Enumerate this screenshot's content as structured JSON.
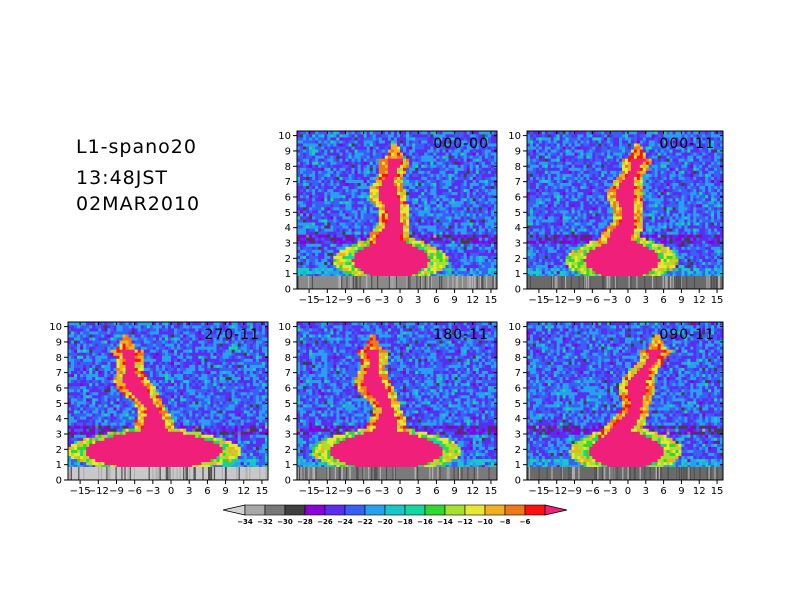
{
  "header": {
    "line1": "L1-spano20",
    "line2": "13:48JST",
    "line3": "02MAR2010"
  },
  "chart_data": {
    "type": "heatmap",
    "x_ticks": [
      -15,
      -12,
      -9,
      -6,
      -3,
      0,
      3,
      6,
      9,
      12,
      15
    ],
    "y_ticks": [
      0,
      1,
      2,
      3,
      4,
      5,
      6,
      7,
      8,
      9,
      10
    ],
    "xlim": [
      -17,
      16
    ],
    "ylim": [
      0,
      10.3
    ],
    "colorbar": {
      "levels": [
        -34,
        -32,
        -30,
        -28,
        -26,
        -24,
        -22,
        -20,
        -18,
        -16,
        -14,
        -12,
        -10,
        -8,
        -6
      ],
      "colors": [
        "#d2d2d2",
        "#a8a8a8",
        "#787878",
        "#404040",
        "#8a00d8",
        "#5a2ef0",
        "#3a5ff5",
        "#28a0f0",
        "#18c8c8",
        "#10d8a0",
        "#30d830",
        "#a8e030",
        "#e8e830",
        "#f0b020",
        "#f07818",
        "#ff1010",
        "#f0207a"
      ]
    },
    "panels": [
      {
        "label": "000-00",
        "plume_tilt": 0.0,
        "ground": "#8a8a8a"
      },
      {
        "label": "000-11",
        "plume_tilt": 0.35,
        "ground": "#6a6a6a"
      },
      {
        "label": "270-11",
        "plume_tilt": -0.9,
        "ground": "#c8c8c8"
      },
      {
        "label": "180-11",
        "plume_tilt": -0.5,
        "ground": "#7a7a7a"
      },
      {
        "label": "090-11",
        "plume_tilt": 0.8,
        "ground": "#6a6a6a"
      }
    ]
  }
}
